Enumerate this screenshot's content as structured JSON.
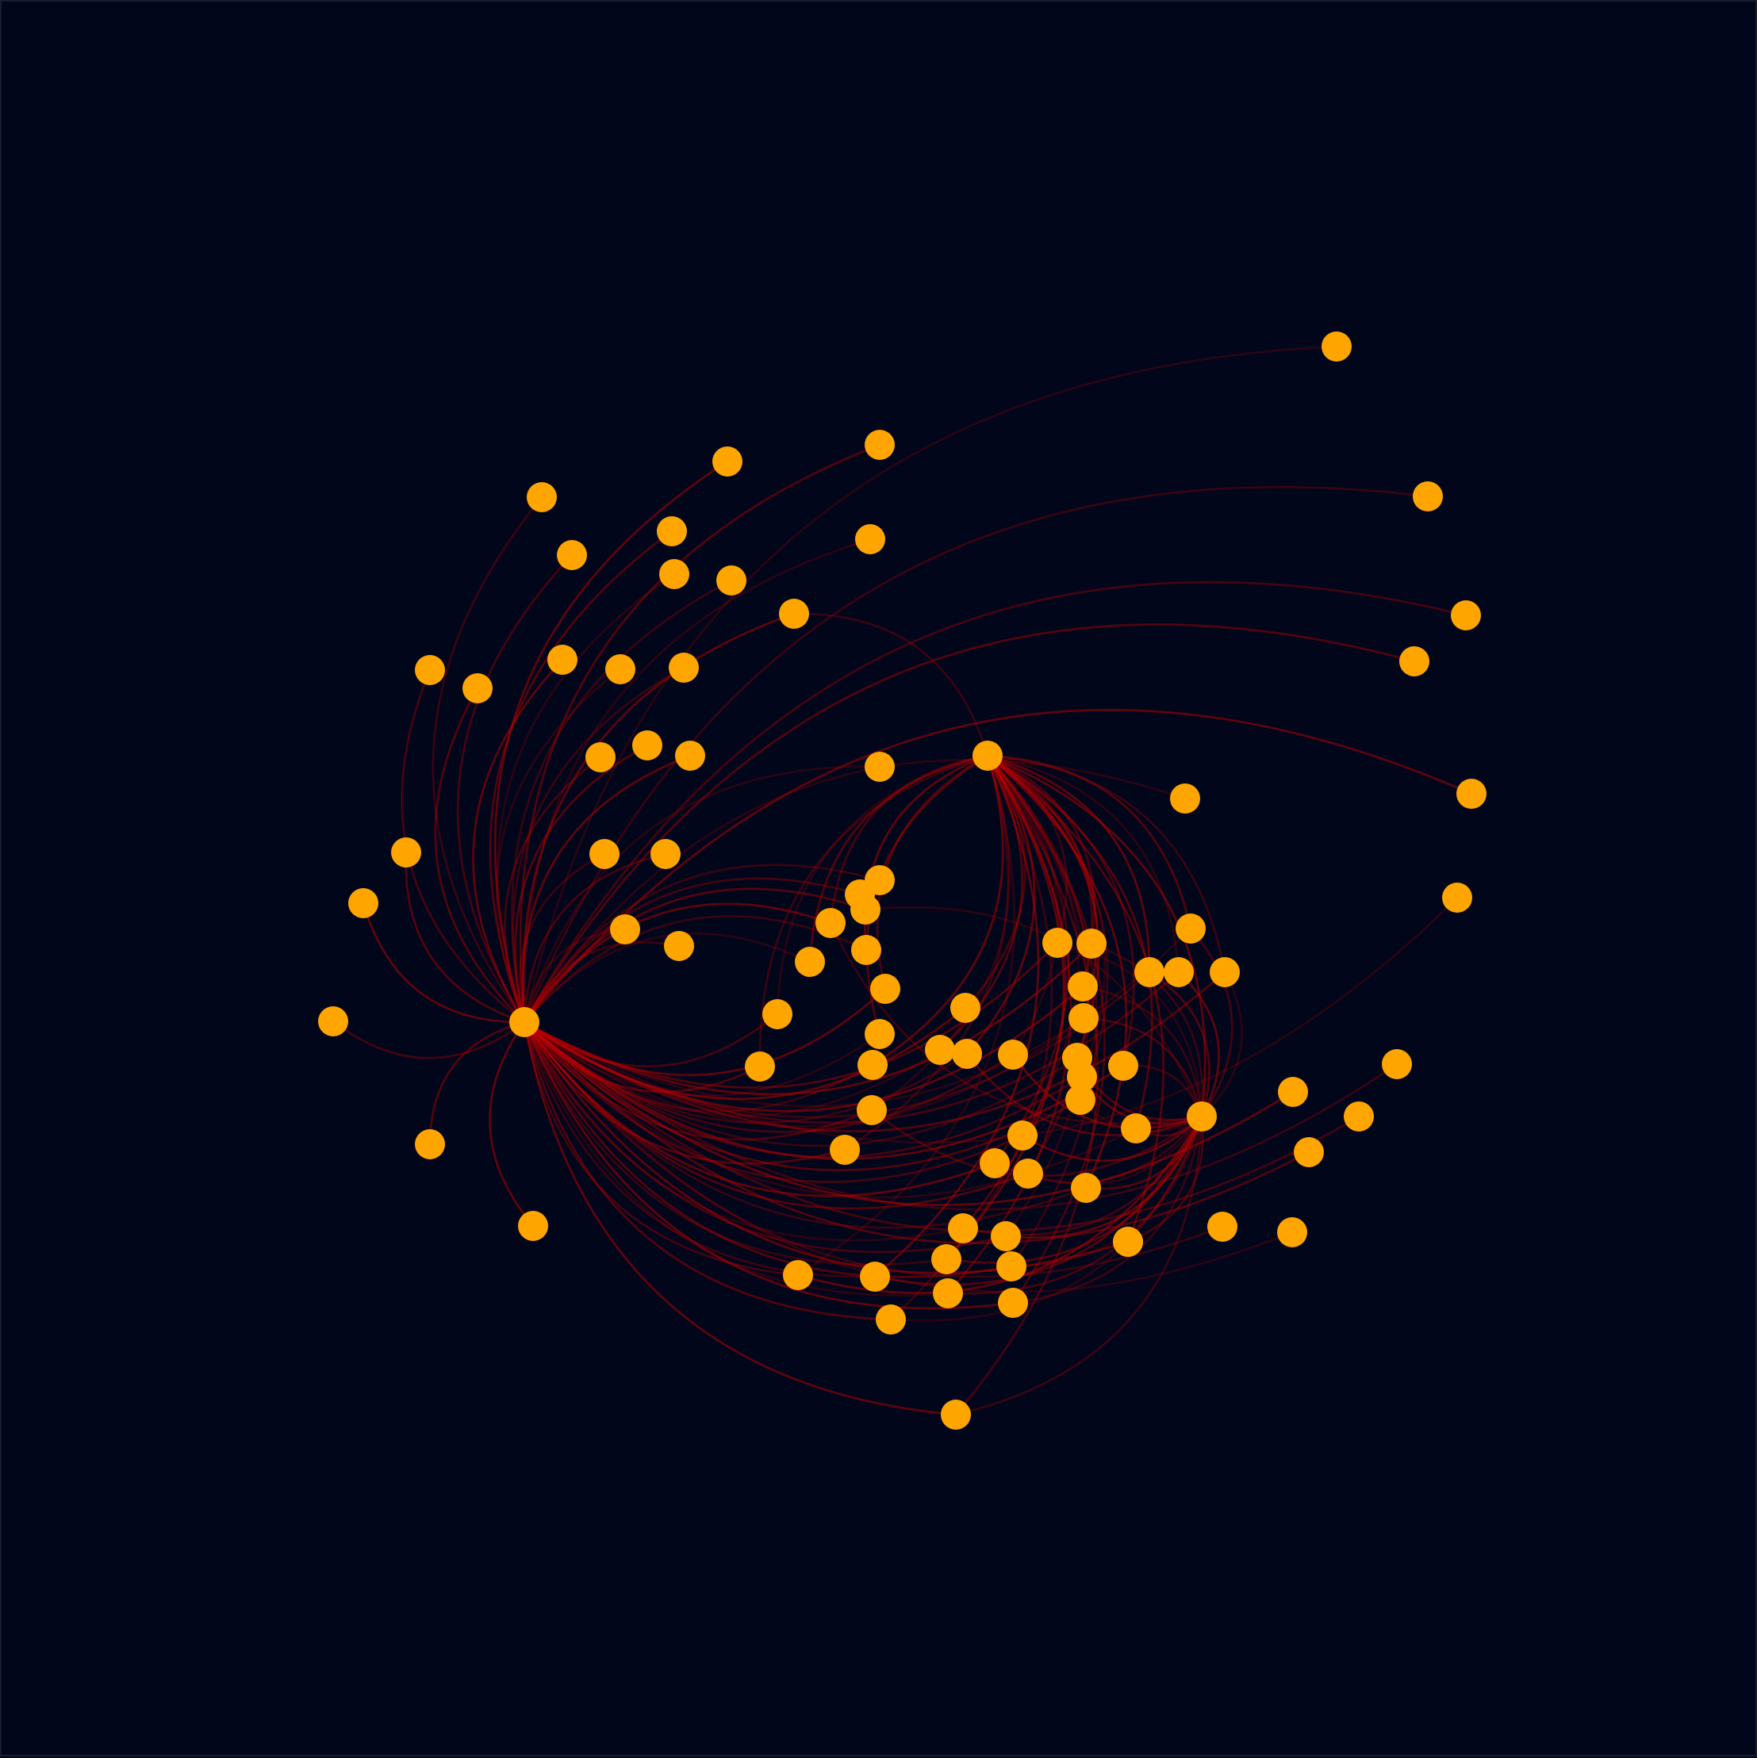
{
  "diagram": {
    "type": "arc-network",
    "background_color": "#02061a",
    "node_color": "#ffa500",
    "edge_color": "#c00000",
    "hubs": [
      "A",
      "B",
      "C"
    ],
    "nodes": [
      {
        "id": "A"
      },
      {
        "id": "B"
      },
      {
        "id": "C"
      },
      {
        "id": "n1"
      },
      {
        "id": "n2"
      },
      {
        "id": "n3"
      },
      {
        "id": "n4"
      },
      {
        "id": "n5"
      },
      {
        "id": "n6"
      },
      {
        "id": "n7"
      },
      {
        "id": "n8"
      },
      {
        "id": "n9"
      },
      {
        "id": "n10"
      },
      {
        "id": "n11"
      },
      {
        "id": "n12"
      },
      {
        "id": "n13"
      },
      {
        "id": "n14"
      },
      {
        "id": "n15"
      },
      {
        "id": "n16"
      },
      {
        "id": "n17"
      },
      {
        "id": "n18"
      },
      {
        "id": "n19"
      },
      {
        "id": "n20"
      },
      {
        "id": "n21"
      },
      {
        "id": "n22"
      },
      {
        "id": "n23"
      },
      {
        "id": "n24"
      },
      {
        "id": "n25"
      },
      {
        "id": "n26"
      },
      {
        "id": "n27"
      },
      {
        "id": "n28"
      },
      {
        "id": "n29"
      },
      {
        "id": "n30"
      },
      {
        "id": "n31"
      },
      {
        "id": "n32"
      },
      {
        "id": "n33"
      },
      {
        "id": "n34"
      },
      {
        "id": "n35"
      },
      {
        "id": "n36"
      },
      {
        "id": "n37"
      },
      {
        "id": "n38"
      },
      {
        "id": "n39"
      },
      {
        "id": "n40"
      },
      {
        "id": "n41"
      },
      {
        "id": "n42"
      },
      {
        "id": "n43"
      },
      {
        "id": "n44"
      },
      {
        "id": "n45"
      },
      {
        "id": "n46"
      },
      {
        "id": "n47"
      },
      {
        "id": "n48"
      },
      {
        "id": "n49"
      },
      {
        "id": "n50"
      },
      {
        "id": "n51"
      },
      {
        "id": "n52"
      },
      {
        "id": "n53"
      },
      {
        "id": "n54"
      },
      {
        "id": "n55"
      },
      {
        "id": "n56"
      },
      {
        "id": "n57"
      },
      {
        "id": "n58"
      },
      {
        "id": "n59"
      },
      {
        "id": "n60"
      },
      {
        "id": "n61"
      },
      {
        "id": "n62"
      },
      {
        "id": "n63"
      },
      {
        "id": "n64"
      },
      {
        "id": "n65"
      },
      {
        "id": "n66"
      },
      {
        "id": "n67"
      },
      {
        "id": "n68"
      },
      {
        "id": "n69"
      },
      {
        "id": "n70"
      },
      {
        "id": "n71"
      },
      {
        "id": "n72"
      },
      {
        "id": "n73"
      },
      {
        "id": "n74"
      },
      {
        "id": "n75"
      },
      {
        "id": "n76"
      },
      {
        "id": "n77"
      },
      {
        "id": "n78"
      },
      {
        "id": "n79"
      },
      {
        "id": "n80"
      },
      {
        "id": "n81"
      },
      {
        "id": "n82"
      },
      {
        "id": "n83"
      },
      {
        "id": "n84"
      },
      {
        "id": "n85"
      },
      {
        "id": "n86"
      }
    ],
    "edges": [
      [
        "A",
        "n1"
      ],
      [
        "A",
        "n2"
      ],
      [
        "A",
        "n3"
      ],
      [
        "A",
        "n4"
      ],
      [
        "A",
        "n5"
      ],
      [
        "A",
        "n6"
      ],
      [
        "A",
        "n7"
      ],
      [
        "A",
        "n8"
      ],
      [
        "A",
        "n9"
      ],
      [
        "A",
        "n10"
      ],
      [
        "A",
        "n11"
      ],
      [
        "A",
        "n12"
      ],
      [
        "A",
        "n13"
      ],
      [
        "A",
        "n14"
      ],
      [
        "A",
        "n15"
      ],
      [
        "A",
        "n16"
      ],
      [
        "A",
        "n17"
      ],
      [
        "A",
        "n18"
      ],
      [
        "A",
        "n19"
      ],
      [
        "A",
        "n20"
      ],
      [
        "A",
        "n21"
      ],
      [
        "A",
        "n22"
      ],
      [
        "A",
        "n23"
      ],
      [
        "A",
        "n24"
      ],
      [
        "A",
        "n25"
      ],
      [
        "A",
        "n26"
      ],
      [
        "A",
        "n27"
      ],
      [
        "A",
        "n28"
      ],
      [
        "A",
        "n29"
      ],
      [
        "A",
        "n30"
      ],
      [
        "A",
        "n31"
      ],
      [
        "A",
        "n32"
      ],
      [
        "A",
        "n33"
      ],
      [
        "A",
        "n34"
      ],
      [
        "A",
        "n35"
      ],
      [
        "A",
        "n36"
      ],
      [
        "A",
        "n37"
      ],
      [
        "A",
        "n38"
      ],
      [
        "A",
        "n39"
      ],
      [
        "A",
        "n40"
      ],
      [
        "A",
        "n41"
      ],
      [
        "A",
        "n42"
      ],
      [
        "A",
        "n43"
      ],
      [
        "A",
        "n44"
      ],
      [
        "A",
        "n45"
      ],
      [
        "A",
        "n46"
      ],
      [
        "A",
        "n47"
      ],
      [
        "A",
        "n48"
      ],
      [
        "A",
        "n49"
      ],
      [
        "A",
        "n50"
      ],
      [
        "A",
        "n51"
      ],
      [
        "A",
        "n52"
      ],
      [
        "A",
        "n53"
      ],
      [
        "A",
        "n54"
      ],
      [
        "A",
        "n55"
      ],
      [
        "A",
        "n56"
      ],
      [
        "A",
        "n57"
      ],
      [
        "A",
        "n58"
      ],
      [
        "A",
        "n59"
      ],
      [
        "A",
        "n60"
      ],
      [
        "A",
        "n61"
      ],
      [
        "A",
        "n62"
      ],
      [
        "A",
        "n63"
      ],
      [
        "A",
        "n64"
      ],
      [
        "A",
        "n65"
      ],
      [
        "A",
        "n66"
      ],
      [
        "A",
        "n67"
      ],
      [
        "A",
        "n68"
      ],
      [
        "A",
        "n69"
      ],
      [
        "A",
        "n70"
      ],
      [
        "A",
        "n71"
      ],
      [
        "A",
        "n72"
      ],
      [
        "A",
        "n73"
      ],
      [
        "A",
        "n74"
      ],
      [
        "A",
        "n75"
      ],
      [
        "A",
        "n76"
      ],
      [
        "A",
        "n77"
      ],
      [
        "A",
        "n78"
      ],
      [
        "A",
        "n79"
      ],
      [
        "A",
        "n80"
      ],
      [
        "A",
        "n81"
      ],
      [
        "A",
        "n82"
      ],
      [
        "A",
        "n83"
      ],
      [
        "A",
        "n84"
      ],
      [
        "A",
        "n85"
      ],
      [
        "A",
        "n86"
      ],
      [
        "B",
        "n20"
      ],
      [
        "B",
        "n45"
      ],
      [
        "B",
        "n46"
      ],
      [
        "B",
        "n47"
      ],
      [
        "B",
        "n48"
      ],
      [
        "B",
        "n49"
      ],
      [
        "B",
        "n50"
      ],
      [
        "B",
        "n51"
      ],
      [
        "B",
        "n52"
      ],
      [
        "B",
        "n53"
      ],
      [
        "B",
        "n54"
      ],
      [
        "B",
        "n55"
      ],
      [
        "B",
        "n56"
      ],
      [
        "B",
        "n57"
      ],
      [
        "B",
        "n58"
      ],
      [
        "B",
        "n59"
      ],
      [
        "B",
        "n60"
      ],
      [
        "B",
        "n61"
      ],
      [
        "B",
        "n62"
      ],
      [
        "B",
        "n63"
      ],
      [
        "B",
        "n64"
      ],
      [
        "B",
        "n65"
      ],
      [
        "B",
        "n66"
      ],
      [
        "B",
        "n67"
      ],
      [
        "B",
        "n68"
      ],
      [
        "B",
        "n69"
      ],
      [
        "B",
        "n70"
      ],
      [
        "B",
        "n71"
      ],
      [
        "B",
        "n72"
      ],
      [
        "B",
        "n73"
      ],
      [
        "B",
        "n74"
      ],
      [
        "B",
        "n75"
      ],
      [
        "B",
        "n76"
      ],
      [
        "B",
        "n77"
      ],
      [
        "B",
        "n78"
      ],
      [
        "B",
        "n79"
      ],
      [
        "B",
        "n80"
      ],
      [
        "B",
        "n81"
      ],
      [
        "B",
        "n82"
      ],
      [
        "B",
        "n83"
      ],
      [
        "B",
        "n84"
      ],
      [
        "B",
        "n85"
      ],
      [
        "B",
        "n86"
      ],
      [
        "B",
        "C"
      ],
      [
        "C",
        "n44"
      ],
      [
        "C",
        "n45"
      ],
      [
        "C",
        "n53"
      ],
      [
        "C",
        "n57"
      ],
      [
        "C",
        "n58"
      ],
      [
        "C",
        "n59"
      ],
      [
        "C",
        "n60"
      ],
      [
        "C",
        "n61"
      ],
      [
        "C",
        "n62"
      ],
      [
        "C",
        "n63"
      ],
      [
        "C",
        "n64"
      ],
      [
        "C",
        "n65"
      ],
      [
        "C",
        "n66"
      ],
      [
        "C",
        "n67"
      ],
      [
        "C",
        "n68"
      ],
      [
        "C",
        "n69"
      ],
      [
        "C",
        "n70"
      ],
      [
        "C",
        "n71"
      ],
      [
        "C",
        "n72"
      ],
      [
        "C",
        "n73"
      ],
      [
        "C",
        "n74"
      ],
      [
        "C",
        "n75"
      ],
      [
        "C",
        "n76"
      ],
      [
        "C",
        "n77"
      ],
      [
        "C",
        "n78"
      ],
      [
        "C",
        "n79"
      ],
      [
        "C",
        "n80"
      ],
      [
        "C",
        "n81"
      ],
      [
        "C",
        "n82"
      ],
      [
        "C",
        "n83"
      ],
      [
        "C",
        "n84"
      ],
      [
        "C",
        "n85"
      ],
      [
        "C",
        "n86"
      ]
    ]
  }
}
